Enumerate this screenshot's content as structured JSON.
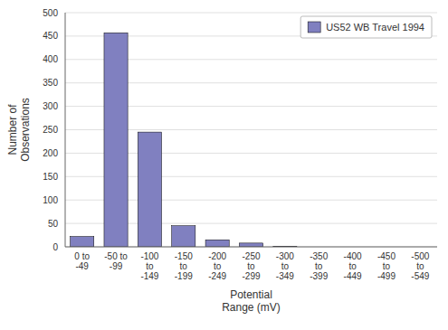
{
  "chart_data": {
    "type": "bar",
    "categories": [
      "0 to\n-49",
      "-50 to\n-99",
      "-100\nto\n-149",
      "-150\nto\n-199",
      "-200\nto\n-249",
      "-250\nto\n-299",
      "-300\nto\n-349",
      "-350\nto\n-399",
      "-400\nto\n-449",
      "-450\nto\n-499",
      "-500\nto\n-549"
    ],
    "series": [
      {
        "name": "US52 WB Travel 1994",
        "color": "#8080c0",
        "values": [
          22,
          457,
          245,
          45,
          15,
          8,
          1,
          0,
          0,
          0,
          0
        ]
      }
    ],
    "xlabel": "Potential\nRange (mV)",
    "ylabel": "Number of\nObservations",
    "ylim": [
      0,
      500
    ],
    "yticks": [
      0,
      50,
      100,
      150,
      200,
      250,
      300,
      350,
      400,
      450,
      500
    ],
    "grid": true,
    "legend": "upper right"
  }
}
